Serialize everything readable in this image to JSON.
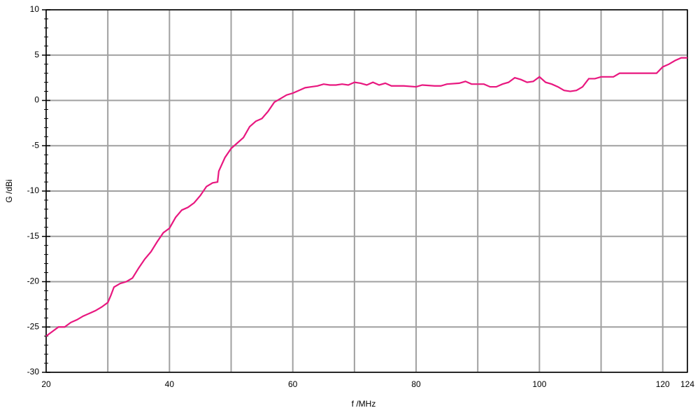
{
  "chart_data": {
    "type": "line",
    "x_label": "f /MHz",
    "y_label": "G /dBi",
    "x": [
      20,
      21,
      22,
      23,
      24,
      25,
      26,
      27,
      28,
      29,
      30,
      30.5,
      31,
      32,
      33,
      34,
      35,
      36,
      37,
      38,
      39,
      40,
      41,
      42,
      43,
      44,
      45,
      46,
      47,
      47.8,
      48,
      49,
      50,
      51,
      52,
      53,
      54,
      55,
      56,
      57,
      58,
      59,
      60,
      61,
      62,
      63,
      64,
      65,
      66,
      67,
      68,
      69,
      70,
      71,
      72,
      73,
      74,
      75,
      76,
      78,
      80,
      81,
      83,
      84,
      85,
      87,
      88,
      89,
      91,
      92,
      93,
      94,
      95,
      96,
      97,
      98,
      99,
      100,
      101,
      102,
      103,
      104,
      105,
      106,
      107,
      108,
      109,
      110,
      112,
      113,
      116,
      119,
      120,
      121,
      122,
      123,
      124
    ],
    "series": [
      {
        "color": "#e8177f",
        "values": [
          -26,
          -25.5,
          -25,
          -25,
          -24.5,
          -24.2,
          -23.8,
          -23.5,
          -23.2,
          -22.8,
          -22.3,
          -21.5,
          -20.6,
          -20.2,
          -20.0,
          -19.6,
          -18.5,
          -17.5,
          -16.7,
          -15.6,
          -14.6,
          -14.1,
          -12.9,
          -12.1,
          -11.8,
          -11.3,
          -10.5,
          -9.5,
          -9.1,
          -9.0,
          -7.8,
          -6.3,
          -5.3,
          -4.7,
          -4.1,
          -2.9,
          -2.3,
          -2.0,
          -1.2,
          -0.2,
          0.2,
          0.6,
          0.8,
          1.1,
          1.4,
          1.5,
          1.6,
          1.8,
          1.7,
          1.7,
          1.8,
          1.7,
          2.0,
          1.9,
          1.7,
          2.0,
          1.7,
          1.9,
          1.6,
          1.6,
          1.5,
          1.7,
          1.6,
          1.6,
          1.8,
          1.9,
          2.1,
          1.8,
          1.8,
          1.5,
          1.5,
          1.8,
          2.0,
          2.5,
          2.3,
          2.0,
          2.1,
          2.6,
          2.0,
          1.8,
          1.5,
          1.1,
          1.0,
          1.1,
          1.5,
          2.4,
          2.4,
          2.6,
          2.6,
          3.0,
          3.0,
          3.0,
          3.7,
          4.0,
          4.4,
          4.7,
          4.7
        ]
      }
    ],
    "xlim": [
      20,
      124
    ],
    "ylim": [
      -30,
      10
    ],
    "xticks": [
      20,
      40,
      60,
      80,
      100,
      120,
      124
    ],
    "x_minor_grid": [
      30,
      50,
      70,
      90,
      110
    ],
    "yticks": [
      -30,
      -25,
      -20,
      -15,
      -10,
      -5,
      0,
      5,
      10
    ],
    "y_minor_step": 1,
    "grid": true
  }
}
